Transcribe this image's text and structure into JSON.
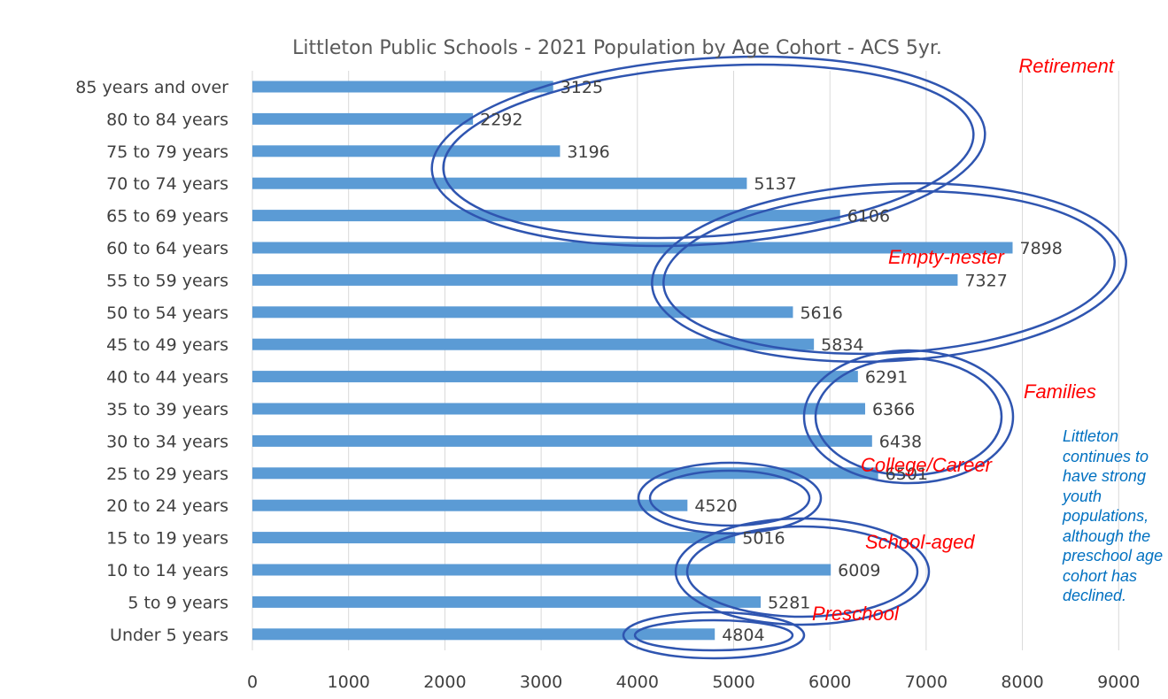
{
  "chart_data": {
    "type": "bar",
    "orientation": "horizontal",
    "title": "Littleton Public Schools - 2021 Population by Age Cohort - ACS 5yr.",
    "categories": [
      "85 years and over",
      "80 to 84 years",
      "75 to 79 years",
      "70 to 74 years",
      "65 to 69 years",
      "60 to 64 years",
      "55 to 59 years",
      "50 to 54 years",
      "45 to 49 years",
      "40 to 44 years",
      "35 to 39 years",
      "30 to 34 years",
      "25 to 29 years",
      "20 to 24 years",
      "15 to 19 years",
      "10 to 14 years",
      "5 to 9 years",
      "Under 5 years"
    ],
    "values": [
      3125,
      2292,
      3196,
      5137,
      6106,
      7898,
      7327,
      5616,
      5834,
      6291,
      6366,
      6438,
      6501,
      4520,
      5016,
      6009,
      5281,
      4804
    ],
    "x_ticks": [
      "0",
      "1000",
      "2000",
      "3000",
      "4000",
      "5000",
      "6000",
      "7000",
      "8000",
      "9000"
    ],
    "xlim": [
      0,
      9000
    ],
    "grid": true,
    "bar_color": "#5b9bd5",
    "annotations": [
      {
        "label": "Retirement"
      },
      {
        "label": "Empty-nester"
      },
      {
        "label": "Families"
      },
      {
        "label": "College/Career"
      },
      {
        "label": "School-aged"
      },
      {
        "label": "Preschool"
      }
    ],
    "annotation_color": "#ff0000",
    "ellipse_color": "#2f55b0"
  },
  "side_note": {
    "text": "Littleton\ncontinues to\nhave strong\nyouth\npopulations,\nalthough the\npreschool age\ncohort has\ndeclined.",
    "color": "#0070c0"
  }
}
